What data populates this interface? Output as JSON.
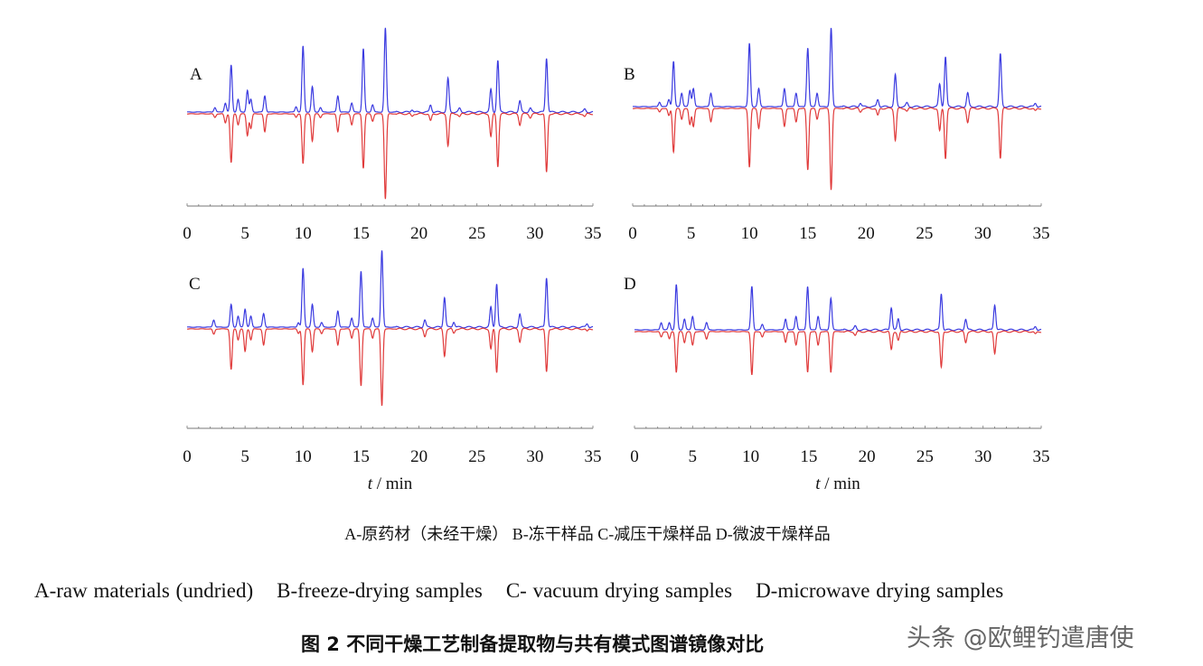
{
  "chart_data": {
    "type": "line",
    "title": "图 2   不同干燥工艺制备提取物与共有模式图谱镜像对比",
    "xlabel_italic": "t",
    "xlabel_rest": " / min",
    "xlim": [
      0,
      35
    ],
    "xticks": [
      "0",
      "5",
      "10",
      "15",
      "20",
      "25",
      "30",
      "35"
    ],
    "colors": {
      "sample": "#3a3ae0",
      "common_pattern": "#e03a3a"
    },
    "panels": [
      {
        "label": "A",
        "peaks": [
          [
            2.4,
            5,
            4
          ],
          [
            3.3,
            10,
            10
          ],
          [
            3.8,
            52,
            54
          ],
          [
            4.4,
            14,
            12
          ],
          [
            5.2,
            24,
            24
          ],
          [
            5.5,
            14,
            16
          ],
          [
            6.7,
            18,
            20
          ],
          [
            9.4,
            6,
            4
          ],
          [
            10.0,
            73,
            55
          ],
          [
            10.8,
            28,
            30
          ],
          [
            11.5,
            5,
            4
          ],
          [
            13.0,
            18,
            20
          ],
          [
            14.2,
            10,
            12
          ],
          [
            15.2,
            70,
            60
          ],
          [
            16.0,
            8,
            8
          ],
          [
            17.1,
            93,
            94
          ],
          [
            19.4,
            3,
            3
          ],
          [
            21.0,
            8,
            8
          ],
          [
            22.5,
            37,
            35
          ],
          [
            23.5,
            4,
            3
          ],
          [
            26.2,
            25,
            25
          ],
          [
            26.8,
            57,
            58
          ],
          [
            28.7,
            12,
            12
          ],
          [
            29.6,
            4,
            4
          ],
          [
            31.0,
            60,
            65
          ],
          [
            34.3,
            3,
            3
          ]
        ]
      },
      {
        "label": "B",
        "peaks": [
          [
            2.3,
            5,
            4
          ],
          [
            3.1,
            8,
            8
          ],
          [
            3.5,
            50,
            48
          ],
          [
            4.2,
            15,
            12
          ],
          [
            4.9,
            18,
            18
          ],
          [
            5.2,
            20,
            20
          ],
          [
            6.7,
            15,
            15
          ],
          [
            10.0,
            70,
            65
          ],
          [
            10.8,
            20,
            22
          ],
          [
            13.0,
            20,
            20
          ],
          [
            14.0,
            15,
            15
          ],
          [
            15.0,
            65,
            68
          ],
          [
            15.8,
            15,
            12
          ],
          [
            17.0,
            87,
            90
          ],
          [
            19.5,
            4,
            4
          ],
          [
            21.0,
            8,
            8
          ],
          [
            22.5,
            35,
            35
          ],
          [
            23.5,
            4,
            3
          ],
          [
            26.3,
            25,
            25
          ],
          [
            26.8,
            55,
            55
          ],
          [
            28.7,
            15,
            15
          ],
          [
            31.5,
            58,
            55
          ],
          [
            34.5,
            4,
            3
          ]
        ]
      },
      {
        "label": "C",
        "peaks": [
          [
            2.3,
            8,
            6
          ],
          [
            3.8,
            25,
            45
          ],
          [
            4.4,
            12,
            12
          ],
          [
            5.0,
            20,
            25
          ],
          [
            5.5,
            12,
            12
          ],
          [
            6.6,
            15,
            18
          ],
          [
            9.6,
            5,
            5
          ],
          [
            10.0,
            65,
            62
          ],
          [
            10.8,
            25,
            25
          ],
          [
            11.6,
            5,
            5
          ],
          [
            13.0,
            18,
            18
          ],
          [
            14.2,
            10,
            10
          ],
          [
            15.0,
            62,
            63
          ],
          [
            16.0,
            10,
            10
          ],
          [
            16.8,
            85,
            85
          ],
          [
            20.5,
            8,
            8
          ],
          [
            22.2,
            33,
            30
          ],
          [
            23.0,
            6,
            5
          ],
          [
            26.2,
            22,
            22
          ],
          [
            26.7,
            48,
            48
          ],
          [
            28.7,
            14,
            14
          ],
          [
            31.0,
            55,
            48
          ],
          [
            34.5,
            4,
            3
          ]
        ]
      },
      {
        "label": "D",
        "peaks": [
          [
            2.3,
            8,
            6
          ],
          [
            3.0,
            8,
            8
          ],
          [
            3.6,
            50,
            45
          ],
          [
            4.3,
            12,
            12
          ],
          [
            5.0,
            15,
            15
          ],
          [
            6.2,
            8,
            8
          ],
          [
            10.1,
            48,
            48
          ],
          [
            11.0,
            6,
            6
          ],
          [
            13.0,
            12,
            12
          ],
          [
            13.9,
            15,
            15
          ],
          [
            14.9,
            48,
            45
          ],
          [
            15.8,
            15,
            15
          ],
          [
            16.9,
            35,
            45
          ],
          [
            19.0,
            4,
            4
          ],
          [
            22.1,
            25,
            20
          ],
          [
            22.7,
            12,
            10
          ],
          [
            26.4,
            40,
            40
          ],
          [
            28.5,
            12,
            12
          ],
          [
            31.0,
            28,
            25
          ],
          [
            34.5,
            4,
            3
          ]
        ]
      }
    ]
  },
  "captions": {
    "cn": "A-原药材（未经干燥）  B-冻干样品  C-减压干燥样品  D-微波干燥样品",
    "en": [
      "A-raw materials (undried)",
      "B-freeze-drying samples",
      "C- vacuum drying samples",
      "D-microwave drying samples"
    ],
    "title": "图 2    不同干燥工艺制备提取物与共有模式图谱镜像对比"
  },
  "watermark": "头条 @欧鲤钓遣唐使"
}
